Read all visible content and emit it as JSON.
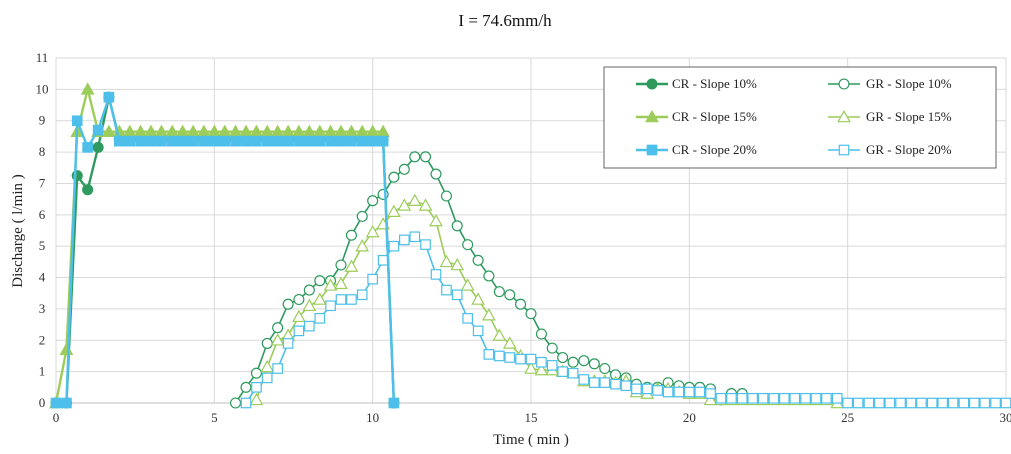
{
  "chart_data": {
    "type": "line",
    "title": "I = 74.6mm/h",
    "xlabel": "Time ( min )",
    "ylabel": "Discharge ( l/min )",
    "xlim": [
      0,
      30
    ],
    "ylim": [
      0,
      11
    ],
    "xticks": [
      0,
      5,
      10,
      15,
      20,
      25,
      30
    ],
    "yticks": [
      0,
      1,
      2,
      3,
      4,
      5,
      6,
      7,
      8,
      9,
      10,
      11
    ],
    "grid": true,
    "legend_position": "top-right",
    "series": [
      {
        "name": "CR - Slope 10%",
        "color": "#2e9a5e",
        "marker": "circle",
        "filled": true,
        "points": [
          [
            0,
            0
          ],
          [
            0.33,
            0
          ],
          [
            0.67,
            7.25
          ],
          [
            1.0,
            6.8
          ],
          [
            1.33,
            8.15
          ],
          [
            1.67,
            9.75
          ],
          [
            2.0,
            8.4
          ],
          [
            2.33,
            8.4
          ],
          [
            2.67,
            8.4
          ],
          [
            3.0,
            8.4
          ],
          [
            3.33,
            8.4
          ],
          [
            3.67,
            8.4
          ],
          [
            4.0,
            8.4
          ],
          [
            4.33,
            8.4
          ],
          [
            4.67,
            8.4
          ],
          [
            5.0,
            8.4
          ],
          [
            5.33,
            8.4
          ],
          [
            5.67,
            8.4
          ],
          [
            6.0,
            8.4
          ],
          [
            6.33,
            8.4
          ],
          [
            6.67,
            8.4
          ],
          [
            7.0,
            8.4
          ],
          [
            7.33,
            8.4
          ],
          [
            7.67,
            8.4
          ],
          [
            8.0,
            8.4
          ],
          [
            8.33,
            8.4
          ],
          [
            8.67,
            8.4
          ],
          [
            9.0,
            8.4
          ],
          [
            9.33,
            8.4
          ],
          [
            9.67,
            8.4
          ],
          [
            10.0,
            8.4
          ],
          [
            10.33,
            8.4
          ],
          [
            10.67,
            0
          ]
        ]
      },
      {
        "name": "CR - Slope 15%",
        "color": "#9ccc5a",
        "marker": "triangle",
        "filled": true,
        "points": [
          [
            0,
            0
          ],
          [
            0.33,
            1.7
          ],
          [
            0.67,
            8.65
          ],
          [
            1.0,
            10.0
          ],
          [
            1.33,
            8.65
          ],
          [
            1.67,
            8.65
          ],
          [
            2.0,
            8.65
          ],
          [
            2.33,
            8.65
          ],
          [
            2.67,
            8.65
          ],
          [
            3.0,
            8.65
          ],
          [
            3.33,
            8.65
          ],
          [
            3.67,
            8.65
          ],
          [
            4.0,
            8.65
          ],
          [
            4.33,
            8.65
          ],
          [
            4.67,
            8.65
          ],
          [
            5.0,
            8.65
          ],
          [
            5.33,
            8.65
          ],
          [
            5.67,
            8.65
          ],
          [
            6.0,
            8.65
          ],
          [
            6.33,
            8.65
          ],
          [
            6.67,
            8.65
          ],
          [
            7.0,
            8.65
          ],
          [
            7.33,
            8.65
          ],
          [
            7.67,
            8.65
          ],
          [
            8.0,
            8.65
          ],
          [
            8.33,
            8.65
          ],
          [
            8.67,
            8.65
          ],
          [
            9.0,
            8.65
          ],
          [
            9.33,
            8.65
          ],
          [
            9.67,
            8.65
          ],
          [
            10.0,
            8.65
          ],
          [
            10.33,
            8.65
          ]
        ]
      },
      {
        "name": "CR - Slope 20%",
        "color": "#4dbfea",
        "marker": "square",
        "filled": true,
        "points": [
          [
            0,
            0
          ],
          [
            0.33,
            0
          ],
          [
            0.67,
            9.0
          ],
          [
            1.0,
            8.15
          ],
          [
            1.33,
            8.7
          ],
          [
            1.67,
            9.75
          ],
          [
            2.0,
            8.35
          ],
          [
            2.33,
            8.35
          ],
          [
            2.67,
            8.35
          ],
          [
            3.0,
            8.35
          ],
          [
            3.33,
            8.35
          ],
          [
            3.67,
            8.35
          ],
          [
            4.0,
            8.35
          ],
          [
            4.33,
            8.35
          ],
          [
            4.67,
            8.35
          ],
          [
            5.0,
            8.35
          ],
          [
            5.33,
            8.35
          ],
          [
            5.67,
            8.35
          ],
          [
            6.0,
            8.35
          ],
          [
            6.33,
            8.35
          ],
          [
            6.67,
            8.35
          ],
          [
            7.0,
            8.35
          ],
          [
            7.33,
            8.35
          ],
          [
            7.67,
            8.35
          ],
          [
            8.0,
            8.35
          ],
          [
            8.33,
            8.35
          ],
          [
            8.67,
            8.35
          ],
          [
            9.0,
            8.35
          ],
          [
            9.33,
            8.35
          ],
          [
            9.67,
            8.35
          ],
          [
            10.0,
            8.35
          ],
          [
            10.33,
            8.35
          ],
          [
            10.67,
            0
          ]
        ]
      },
      {
        "name": "GR - Slope 10%",
        "color": "#2e9a5e",
        "marker": "circle",
        "filled": false,
        "points": [
          [
            5.67,
            0
          ],
          [
            6.0,
            0.5
          ],
          [
            6.33,
            0.95
          ],
          [
            6.67,
            1.9
          ],
          [
            7.0,
            2.4
          ],
          [
            7.33,
            3.15
          ],
          [
            7.67,
            3.3
          ],
          [
            8.0,
            3.6
          ],
          [
            8.33,
            3.9
          ],
          [
            8.67,
            3.9
          ],
          [
            9.0,
            4.4
          ],
          [
            9.33,
            5.35
          ],
          [
            9.67,
            5.95
          ],
          [
            10.0,
            6.45
          ],
          [
            10.33,
            6.65
          ],
          [
            10.67,
            7.2
          ],
          [
            11.0,
            7.45
          ],
          [
            11.33,
            7.85
          ],
          [
            11.67,
            7.85
          ],
          [
            12.0,
            7.3
          ],
          [
            12.33,
            6.6
          ],
          [
            12.67,
            5.65
          ],
          [
            13.0,
            5.05
          ],
          [
            13.33,
            4.55
          ],
          [
            13.67,
            4.05
          ],
          [
            14.0,
            3.55
          ],
          [
            14.33,
            3.45
          ],
          [
            14.67,
            3.15
          ],
          [
            15.0,
            2.85
          ],
          [
            15.33,
            2.2
          ],
          [
            15.67,
            1.75
          ],
          [
            16.0,
            1.45
          ],
          [
            16.33,
            1.3
          ],
          [
            16.67,
            1.35
          ],
          [
            17.0,
            1.25
          ],
          [
            17.33,
            1.1
          ],
          [
            17.67,
            0.9
          ],
          [
            18.0,
            0.8
          ],
          [
            18.33,
            0.6
          ],
          [
            18.67,
            0.5
          ],
          [
            19.0,
            0.5
          ],
          [
            19.33,
            0.65
          ],
          [
            19.67,
            0.55
          ],
          [
            20.0,
            0.5
          ],
          [
            20.33,
            0.5
          ],
          [
            20.67,
            0.45
          ],
          [
            21.0,
            0.1
          ],
          [
            21.33,
            0.3
          ],
          [
            21.67,
            0.3
          ]
        ]
      },
      {
        "name": "GR - Slope 15%",
        "color": "#9ccc5a",
        "marker": "triangle",
        "filled": false,
        "points": [
          [
            6.33,
            0.1
          ],
          [
            6.67,
            1.15
          ],
          [
            7.0,
            2.0
          ],
          [
            7.33,
            2.15
          ],
          [
            7.67,
            2.75
          ],
          [
            8.0,
            3.1
          ],
          [
            8.33,
            3.3
          ],
          [
            8.67,
            3.75
          ],
          [
            9.0,
            3.8
          ],
          [
            9.33,
            4.35
          ],
          [
            9.67,
            5.0
          ],
          [
            10.0,
            5.45
          ],
          [
            10.33,
            5.7
          ],
          [
            10.67,
            6.1
          ],
          [
            11.0,
            6.3
          ],
          [
            11.33,
            6.45
          ],
          [
            11.67,
            6.3
          ],
          [
            12.0,
            5.8
          ],
          [
            12.33,
            4.5
          ],
          [
            12.67,
            4.4
          ],
          [
            13.0,
            3.75
          ],
          [
            13.33,
            3.3
          ],
          [
            13.67,
            2.8
          ],
          [
            14.0,
            2.15
          ],
          [
            14.33,
            1.9
          ],
          [
            14.67,
            1.5
          ],
          [
            15.0,
            1.1
          ],
          [
            15.33,
            1.05
          ],
          [
            15.67,
            1.05
          ],
          [
            16.0,
            1.0
          ],
          [
            16.33,
            0.95
          ],
          [
            16.67,
            0.7
          ],
          [
            17.0,
            0.7
          ],
          [
            17.33,
            0.7
          ],
          [
            17.67,
            0.65
          ],
          [
            18.0,
            0.7
          ],
          [
            18.33,
            0.35
          ],
          [
            18.67,
            0.3
          ],
          [
            19.0,
            0.45
          ],
          [
            19.33,
            0.45
          ],
          [
            19.67,
            0.35
          ],
          [
            20.0,
            0.3
          ],
          [
            20.33,
            0.3
          ],
          [
            20.67,
            0.1
          ],
          [
            21.0,
            0.1
          ],
          [
            21.33,
            0.1
          ],
          [
            21.67,
            0.1
          ],
          [
            22.0,
            0.1
          ],
          [
            22.33,
            0.1
          ],
          [
            22.67,
            0.1
          ],
          [
            23.0,
            0.1
          ],
          [
            23.33,
            0.1
          ],
          [
            23.67,
            0.1
          ],
          [
            24.0,
            0.1
          ],
          [
            24.33,
            0.1
          ],
          [
            24.67,
            0.0
          ]
        ]
      },
      {
        "name": "GR - Slope 20%",
        "color": "#4dbfea",
        "marker": "square",
        "filled": false,
        "points": [
          [
            6.0,
            0
          ],
          [
            6.33,
            0.5
          ],
          [
            6.67,
            0.8
          ],
          [
            7.0,
            1.1
          ],
          [
            7.33,
            1.9
          ],
          [
            7.67,
            2.3
          ],
          [
            8.0,
            2.45
          ],
          [
            8.33,
            2.7
          ],
          [
            8.67,
            3.1
          ],
          [
            9.0,
            3.3
          ],
          [
            9.33,
            3.3
          ],
          [
            9.67,
            3.45
          ],
          [
            10.0,
            3.95
          ],
          [
            10.33,
            4.55
          ],
          [
            10.67,
            5.0
          ],
          [
            11.0,
            5.2
          ],
          [
            11.33,
            5.3
          ],
          [
            11.67,
            5.05
          ],
          [
            12.0,
            4.1
          ],
          [
            12.33,
            3.6
          ],
          [
            12.67,
            3.45
          ],
          [
            13.0,
            2.7
          ],
          [
            13.33,
            2.3
          ],
          [
            13.67,
            1.55
          ],
          [
            14.0,
            1.5
          ],
          [
            14.33,
            1.45
          ],
          [
            14.67,
            1.4
          ],
          [
            15.0,
            1.4
          ],
          [
            15.33,
            1.3
          ],
          [
            15.67,
            1.2
          ],
          [
            16.0,
            1.0
          ],
          [
            16.33,
            0.95
          ],
          [
            16.67,
            0.75
          ],
          [
            17.0,
            0.65
          ],
          [
            17.33,
            0.65
          ],
          [
            17.67,
            0.6
          ],
          [
            18.0,
            0.55
          ],
          [
            18.33,
            0.45
          ],
          [
            18.67,
            0.45
          ],
          [
            19.0,
            0.4
          ],
          [
            19.33,
            0.35
          ],
          [
            19.67,
            0.35
          ],
          [
            20.0,
            0.35
          ],
          [
            20.33,
            0.35
          ],
          [
            20.67,
            0.3
          ],
          [
            21.0,
            0.15
          ],
          [
            21.33,
            0.15
          ],
          [
            21.67,
            0.15
          ],
          [
            22.0,
            0.15
          ],
          [
            22.33,
            0.15
          ],
          [
            22.67,
            0.15
          ],
          [
            23.0,
            0.15
          ],
          [
            23.33,
            0.15
          ],
          [
            23.67,
            0.15
          ],
          [
            24.0,
            0.15
          ],
          [
            24.33,
            0.15
          ],
          [
            24.67,
            0.15
          ],
          [
            25.0,
            0
          ],
          [
            25.33,
            0
          ],
          [
            25.67,
            0
          ],
          [
            26.0,
            0
          ],
          [
            26.33,
            0
          ],
          [
            26.67,
            0
          ],
          [
            27.0,
            0
          ],
          [
            27.33,
            0
          ],
          [
            27.67,
            0
          ],
          [
            28.0,
            0
          ],
          [
            28.33,
            0
          ],
          [
            28.67,
            0
          ],
          [
            29.0,
            0
          ],
          [
            29.33,
            0
          ],
          [
            29.67,
            0
          ],
          [
            30.0,
            0
          ]
        ]
      }
    ]
  }
}
